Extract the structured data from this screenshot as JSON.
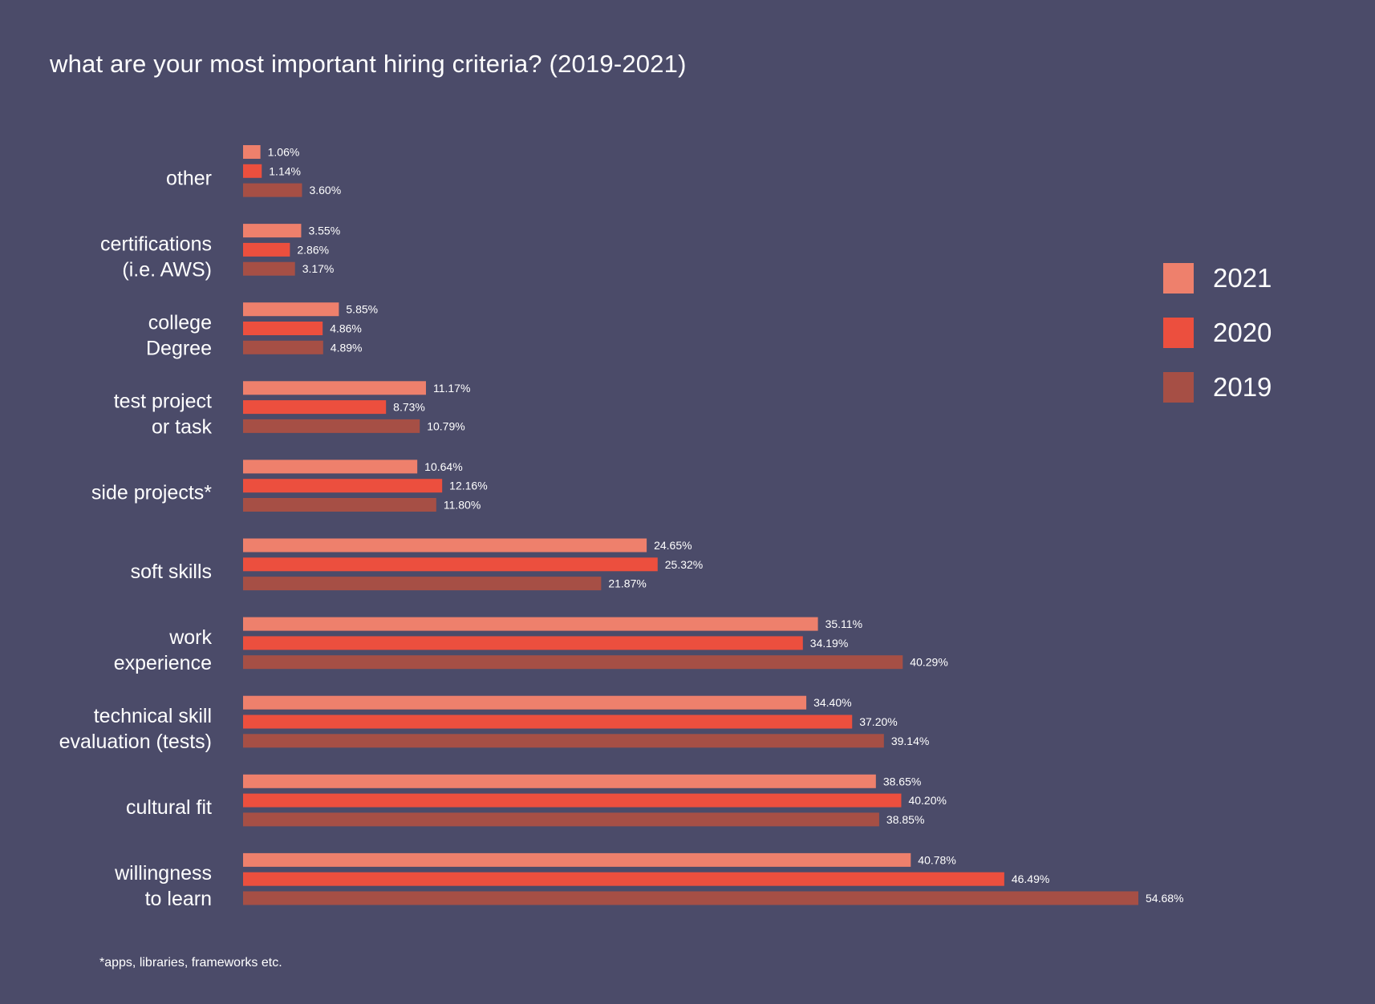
{
  "chart_data": {
    "type": "bar",
    "orientation": "horizontal",
    "title": "what are your most important hiring criteria? (2019-2021)",
    "footnote": "*apps, libraries, frameworks etc.",
    "xlim": [
      0,
      54.68
    ],
    "grid": false,
    "legend_position": "right",
    "categories": [
      [
        "other"
      ],
      [
        "certifications",
        "(i.e. AWS)"
      ],
      [
        "college",
        "Degree"
      ],
      [
        "test project",
        "or task"
      ],
      [
        "side projects*"
      ],
      [
        "soft skills"
      ],
      [
        "work",
        "experience"
      ],
      [
        "technical skill",
        "evaluation (tests)"
      ],
      [
        "cultural fit"
      ],
      [
        "willingness",
        "to learn"
      ]
    ],
    "series": [
      {
        "name": "2021",
        "color": "#ee806c",
        "values": [
          1.06,
          3.55,
          5.85,
          11.17,
          10.64,
          24.65,
          35.11,
          34.4,
          38.65,
          40.78
        ],
        "labels": [
          "1.06%",
          "3.55%",
          "5.85%",
          "11.17%",
          "10.64%",
          "24.65%",
          "35.11%",
          "34.40%",
          "38.65%",
          "40.78%"
        ]
      },
      {
        "name": "2020",
        "color": "#ec4f3e",
        "values": [
          1.14,
          2.86,
          4.86,
          8.73,
          12.16,
          25.32,
          34.19,
          37.2,
          40.2,
          46.49
        ],
        "labels": [
          "1.14%",
          "2.86%",
          "4.86%",
          "8.73%",
          "12.16%",
          "25.32%",
          "34.19%",
          "37.20%",
          "40.20%",
          "46.49%"
        ]
      },
      {
        "name": "2019",
        "color": "#a64f45",
        "values": [
          3.6,
          3.17,
          4.89,
          10.79,
          11.8,
          21.87,
          40.29,
          39.14,
          38.85,
          54.68
        ],
        "labels": [
          "3.60%",
          "3.17%",
          "4.89%",
          "10.79%",
          "11.80%",
          "21.87%",
          "40.29%",
          "39.14%",
          "38.85%",
          "54.68%"
        ]
      }
    ]
  }
}
